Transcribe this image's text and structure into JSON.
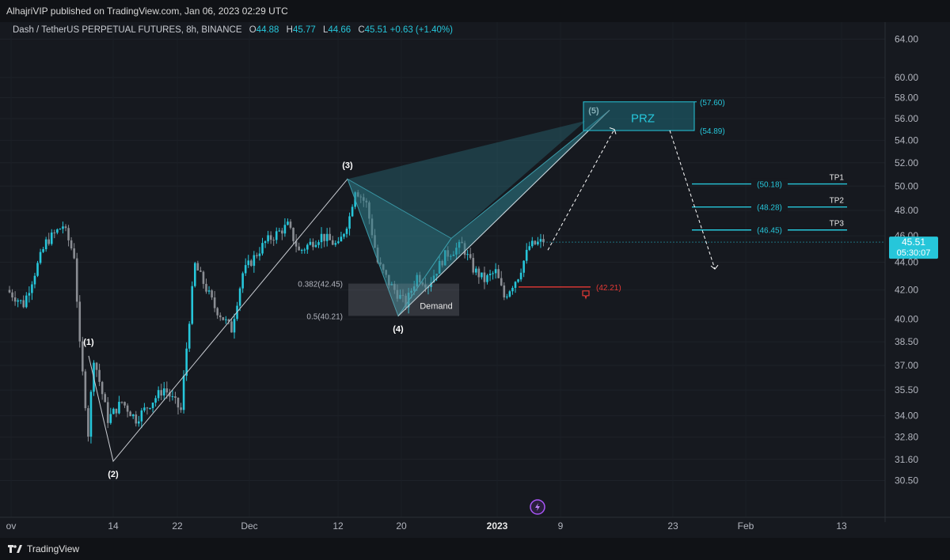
{
  "header": {
    "published_text": "AlhajriVIP published on TradingView.com, Jan 06, 2023 02:29 UTC"
  },
  "legend": {
    "symbol": "Dash / TetherUS PERPETUAL FUTURES, 8h, BINANCE",
    "open_label": "O",
    "open": "44.88",
    "high_label": "H",
    "high": "45.77",
    "low_label": "L",
    "low": "44.66",
    "close_label": "C",
    "close": "45.51",
    "change": "+0.63 (+1.40%)"
  },
  "footer": {
    "brand": "TradingView"
  },
  "colors": {
    "background": "#16191f",
    "up_candle": "#26c6da",
    "down_candle": "#8a8d93",
    "accent": "#26c6da",
    "stop": "#e53935",
    "pattern_fill": "#2f7f8c"
  },
  "chart_data": {
    "type": "candlestick",
    "title": "Dash / TetherUS PERPETUAL FUTURES, 8h, BINANCE",
    "y_axis": {
      "scale": "log",
      "ticks": [
        30.5,
        31.6,
        32.8,
        34.0,
        35.5,
        37.0,
        38.5,
        40.0,
        42.0,
        44.0,
        46.0,
        48.0,
        50.0,
        52.0,
        54.0,
        56.0,
        58.0,
        60.0,
        64.0
      ],
      "tick_labels": [
        "30.50",
        "31.60",
        "32.80",
        "34.00",
        "35.50",
        "37.00",
        "38.50",
        "40.00",
        "42.00",
        "44.00",
        "46.00",
        "48.00",
        "50.00",
        "52.00",
        "54.00",
        "56.00",
        "58.00",
        "60.00",
        "64.00"
      ],
      "range": [
        29.6,
        65.5
      ]
    },
    "x_axis": {
      "labels": [
        "ov",
        "14",
        "22",
        "Dec",
        "12",
        "20",
        "2023",
        "9",
        "23",
        "Feb",
        "13"
      ]
    },
    "price_tag": {
      "price": "45.51",
      "countdown": "05:30:07",
      "value": 45.51
    },
    "candle_anchors": [
      {
        "i": 0,
        "p": 42.0
      },
      {
        "i": 6,
        "p": 41.0
      },
      {
        "i": 14,
        "p": 45.5
      },
      {
        "i": 20,
        "p": 46.8
      },
      {
        "i": 24,
        "p": 44.5
      },
      {
        "i": 26,
        "p": 38.2
      },
      {
        "i": 29,
        "p": 33.0
      },
      {
        "i": 31,
        "p": 37.5
      },
      {
        "i": 36,
        "p": 33.8
      },
      {
        "i": 41,
        "p": 34.8
      },
      {
        "i": 46,
        "p": 33.8
      },
      {
        "i": 56,
        "p": 35.6
      },
      {
        "i": 62,
        "p": 34.3
      },
      {
        "i": 67,
        "p": 43.8
      },
      {
        "i": 74,
        "p": 40.8
      },
      {
        "i": 80,
        "p": 39.3
      },
      {
        "i": 84,
        "p": 43.2
      },
      {
        "i": 92,
        "p": 45.5
      },
      {
        "i": 100,
        "p": 46.8
      },
      {
        "i": 104,
        "p": 44.8
      },
      {
        "i": 112,
        "p": 46.0
      },
      {
        "i": 118,
        "p": 45.2
      },
      {
        "i": 122,
        "p": 47.5
      },
      {
        "i": 124,
        "p": 49.8
      },
      {
        "i": 128,
        "p": 48.5
      },
      {
        "i": 132,
        "p": 44.0
      },
      {
        "i": 136,
        "p": 42.5
      },
      {
        "i": 142,
        "p": 41.0
      },
      {
        "i": 146,
        "p": 43.0
      },
      {
        "i": 150,
        "p": 42.4
      },
      {
        "i": 156,
        "p": 44.5
      },
      {
        "i": 162,
        "p": 45.3
      },
      {
        "i": 166,
        "p": 43.5
      },
      {
        "i": 170,
        "p": 42.7
      },
      {
        "i": 174,
        "p": 43.3
      },
      {
        "i": 177,
        "p": 41.5
      },
      {
        "i": 182,
        "p": 43.0
      },
      {
        "i": 186,
        "p": 45.2
      },
      {
        "i": 190,
        "p": 45.51
      }
    ],
    "pattern_points": [
      {
        "label": "(1)",
        "x": "Nov 10",
        "price": 37.6
      },
      {
        "label": "(2)",
        "x": "Nov 13",
        "price": 31.5
      },
      {
        "label": "(3)",
        "x": "Dec 13",
        "price": 50.6
      },
      {
        "label": "(4)",
        "x": "Dec 19",
        "price": 40.2
      },
      {
        "label": "(5)",
        "x": "Jan 12",
        "price": 56.8
      }
    ],
    "annotations": {
      "prz": {
        "label": "PRZ",
        "upper": 57.6,
        "lower": 54.89,
        "upper_label": "(57.60)",
        "lower_label": "(54.89)"
      },
      "targets": [
        {
          "name": "TP1",
          "price": 50.18,
          "label": "(50.18)"
        },
        {
          "name": "TP2",
          "price": 48.28,
          "label": "(48.28)"
        },
        {
          "name": "TP3",
          "price": 46.45,
          "label": "(46.45)"
        }
      ],
      "stop": {
        "price": 42.21,
        "label": "(42.21)"
      },
      "demand_zone": {
        "label": "Demand",
        "upper": 42.45,
        "lower": 40.21,
        "upper_label": "0.382(42.45)",
        "lower_label": "0.5(40.21)"
      },
      "projection_path_prices": [
        44.9,
        55.0
      ],
      "exit_path_prices": [
        54.9,
        43.5
      ]
    }
  }
}
